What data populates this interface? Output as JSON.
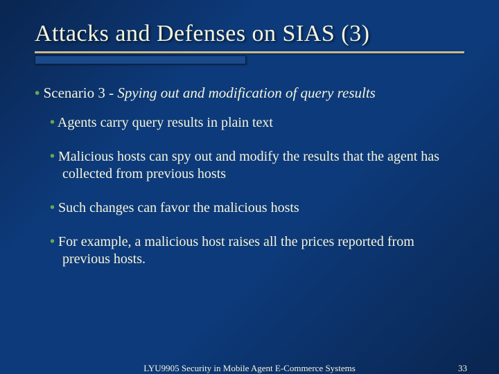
{
  "colors": {
    "bg_gradient_start": "#0a2550",
    "bg_gradient_mid": "#0d3a7a",
    "text": "#f5f5dc",
    "bullet_dot": "#6aa84f",
    "underline_top": "#c9b98a",
    "underline_box": "#1a4a8a"
  },
  "typography": {
    "title_fontsize": 34,
    "l1_fontsize": 21,
    "l2_fontsize": 20,
    "footer_fontsize": 13,
    "font_family": "Times New Roman"
  },
  "title": "Attacks and Defenses on SIAS (3)",
  "l1_prefix": "Scenario 3 - ",
  "l1_italic": "Spying out and modification of query results",
  "l2_items": [
    "Agents carry query results in plain text",
    "Malicious hosts can spy out and modify the results that the agent has collected from previous hosts",
    "Such changes can favor the malicious hosts",
    "For example, a malicious host raises all the prices reported from previous hosts."
  ],
  "footer_text": "LYU9905 Security in Mobile Agent E-Commerce Systems",
  "page_number": "33"
}
